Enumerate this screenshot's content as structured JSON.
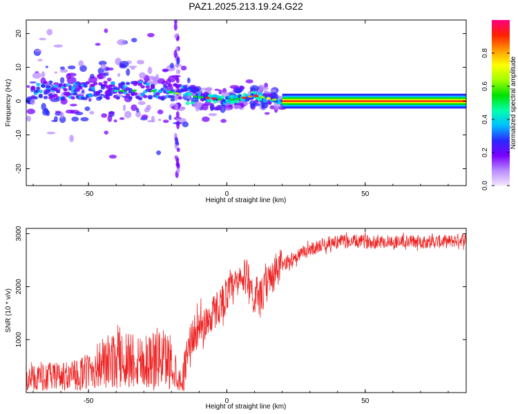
{
  "title": "PAZ1.2025.213.19.24.G22",
  "chart_data": [
    {
      "type": "heatmap",
      "xlabel": "Height of straight line (km)",
      "ylabel": "Frequency (Hz)",
      "xlim": [
        -72.5,
        86.5
      ],
      "ylim": [
        -25,
        24
      ],
      "x_ticks": [
        -50,
        0,
        50
      ],
      "y_ticks": [
        -20,
        -10,
        0,
        10,
        20
      ],
      "grid": false,
      "colorbar": {
        "label": "Normalized spectral amplitude",
        "range": [
          0,
          1
        ],
        "ticks": [
          0.0,
          0.2,
          0.4,
          0.6,
          0.8
        ],
        "colormap": [
          "#f4e6ff",
          "#b88cff",
          "#7a00ff",
          "#2a2aff",
          "#00bfff",
          "#00ffaa",
          "#00e000",
          "#a0ff00",
          "#ffff00",
          "#ff9900",
          "#ff2000",
          "#ff007f"
        ]
      },
      "ridge": {
        "x": [
          -70,
          -60,
          -50,
          -40,
          -30,
          -20,
          -15,
          -10,
          -5,
          0,
          5,
          10,
          15,
          20,
          30,
          50,
          70,
          85
        ],
        "y": [
          3.5,
          3.0,
          3.2,
          3.0,
          3.2,
          2.6,
          1.8,
          1.2,
          0.8,
          0.2,
          0.8,
          1.6,
          0.8,
          0.0,
          0.0,
          0.0,
          0.0,
          0.0
        ]
      }
    },
    {
      "type": "line",
      "xlabel": "Height of straight line (km)",
      "ylabel": "SNR (10 * v/v)",
      "xlim": [
        -72.5,
        86.5
      ],
      "ylim": [
        0,
        3100
      ],
      "x_ticks": [
        -50,
        0,
        50
      ],
      "y_ticks": [
        1000,
        2000,
        3000
      ],
      "color": "#ee2222",
      "grid": false,
      "series": [
        {
          "x": [
            -72,
            -65,
            -60,
            -55,
            -50,
            -45,
            -40,
            -35,
            -30,
            -25,
            -20,
            -18,
            -16,
            -14,
            -12,
            -10,
            -8,
            -5,
            -2,
            0,
            3,
            6,
            8,
            10,
            12,
            15,
            18,
            20,
            23,
            26,
            30,
            35,
            40,
            50,
            60,
            70,
            80,
            86
          ],
          "y": [
            250,
            300,
            300,
            320,
            400,
            550,
            600,
            650,
            600,
            650,
            600,
            300,
            200,
            900,
            1100,
            1200,
            1300,
            1500,
            1700,
            1850,
            2000,
            2150,
            2200,
            1700,
            1750,
            2100,
            2300,
            2400,
            2500,
            2600,
            2700,
            2800,
            2850,
            2850,
            2850,
            2850,
            2850,
            2900
          ]
        }
      ]
    }
  ]
}
